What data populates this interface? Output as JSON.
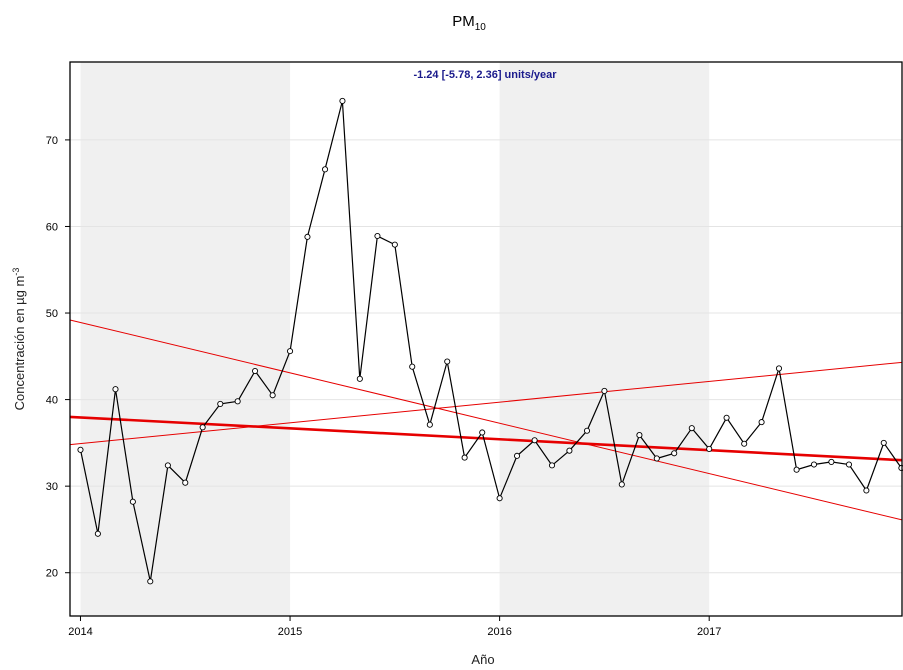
{
  "chart_data": {
    "type": "line",
    "title": "PM",
    "title_subscript": "10",
    "xlabel": "Año",
    "ylabel": "Concentración en µg m",
    "ylabel_superscript": "-3",
    "annotation": "-1.24 [-5.78, 2.36] units/year",
    "xlim": [
      2013.95,
      2017.92
    ],
    "ylim": [
      15,
      79
    ],
    "x_ticks": [
      2014,
      2015,
      2016,
      2017
    ],
    "x_tick_labels": [
      "2014",
      "2015",
      "2016",
      "2017"
    ],
    "y_ticks": [
      20,
      30,
      40,
      50,
      60,
      70
    ],
    "y_tick_labels": [
      "20",
      "30",
      "40",
      "50",
      "60",
      "70"
    ],
    "shaded_years": [
      [
        2014,
        2015
      ],
      [
        2016,
        2017
      ]
    ],
    "grid": true,
    "colors": {
      "series": "#000000",
      "trend": "#e60000",
      "shade": "#f0f0f0",
      "annotation": "#1a1a8c"
    },
    "series": [
      {
        "x": [
          2014.0,
          2014.083,
          2014.167,
          2014.25,
          2014.333,
          2014.417,
          2014.5,
          2014.583,
          2014.667,
          2014.75,
          2014.833,
          2014.917,
          2015.0,
          2015.083,
          2015.167,
          2015.25,
          2015.333,
          2015.417,
          2015.5,
          2015.583,
          2015.667,
          2015.75,
          2015.833,
          2015.917,
          2016.0,
          2016.083,
          2016.167,
          2016.25,
          2016.333,
          2016.417,
          2016.5,
          2016.583,
          2016.667,
          2016.75,
          2016.833,
          2016.917,
          2017.0,
          2017.083,
          2017.167,
          2017.25,
          2017.333,
          2017.417,
          2017.5,
          2017.583,
          2017.667,
          2017.75,
          2017.833,
          2017.917
        ],
        "values": [
          34.2,
          24.5,
          41.2,
          28.2,
          19.0,
          32.4,
          30.4,
          36.8,
          39.5,
          39.8,
          43.3,
          40.5,
          45.6,
          58.8,
          66.6,
          74.5,
          42.4,
          58.9,
          57.9,
          43.8,
          37.1,
          44.4,
          33.3,
          36.2,
          28.6,
          33.5,
          35.3,
          32.4,
          34.1,
          36.4,
          41.0,
          30.2,
          35.9,
          33.2,
          33.8,
          36.7,
          34.3,
          37.9,
          34.9,
          37.4,
          43.6,
          31.9,
          32.5,
          32.8,
          32.5,
          29.5,
          35.0,
          32.1
        ]
      }
    ],
    "trend": {
      "main": [
        [
          2013.95,
          38.0
        ],
        [
          2017.92,
          33.0
        ]
      ],
      "lower": [
        [
          2013.95,
          34.8
        ],
        [
          2017.92,
          44.3
        ]
      ],
      "upper": [
        [
          2013.95,
          49.2
        ],
        [
          2017.92,
          26.1
        ]
      ]
    }
  }
}
